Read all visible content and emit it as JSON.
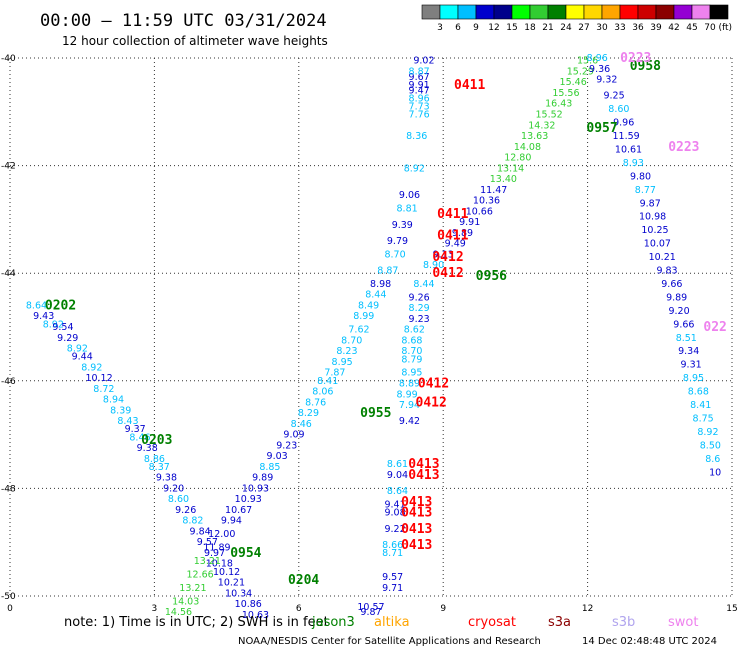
{
  "chart_data": {
    "type": "scatter",
    "title": "00:00 — 11:59 UTC 03/31/2024",
    "subtitle": "12 hour collection of altimeter wave heights",
    "xlim": [
      0,
      15
    ],
    "ylim": [
      -50,
      -40
    ],
    "x_ticks": [
      "0",
      "3",
      "6",
      "9",
      "12",
      "15"
    ],
    "y_ticks": [
      "-40",
      "-42",
      "-44",
      "-46",
      "-48",
      "-50"
    ],
    "grid": true,
    "colorbar": {
      "unit": "(ft)",
      "labels": [
        "3",
        "6",
        "9",
        "12",
        "15",
        "18",
        "21",
        "24",
        "27",
        "30",
        "33",
        "36",
        "39",
        "42",
        "45",
        "70"
      ],
      "colors": [
        "#7f7f7f",
        "#00ffff",
        "#00bfff",
        "#0000cd",
        "#00008b",
        "#00ff00",
        "#32cd32",
        "#008000",
        "#ffff00",
        "#ffd700",
        "#ffa500",
        "#ff0000",
        "#cd0000",
        "#8b0000",
        "#9400d3",
        "#ee82ee",
        "#000000"
      ]
    },
    "passes": [
      {
        "label": "0202",
        "x": 1.05,
        "y": -44.6,
        "color": "#008000"
      },
      {
        "label": "0203",
        "x": 3.05,
        "y": -47.1,
        "color": "#008000"
      },
      {
        "label": "0954",
        "x": 4.9,
        "y": -49.2,
        "color": "#008000"
      },
      {
        "label": "0204",
        "x": 6.1,
        "y": -49.7,
        "color": "#008000"
      },
      {
        "label": "0955",
        "x": 7.6,
        "y": -46.6,
        "color": "#008000"
      },
      {
        "label": "0956",
        "x": 10.0,
        "y": -44.05,
        "color": "#008000"
      },
      {
        "label": "0957",
        "x": 12.3,
        "y": -41.3,
        "color": "#008000"
      },
      {
        "label": "0958",
        "x": 13.2,
        "y": -40.15,
        "color": "#008000"
      },
      {
        "label": "0411",
        "x": 9.55,
        "y": -40.5,
        "color": "#ff0000"
      },
      {
        "label": "0411",
        "x": 9.2,
        "y": -42.9,
        "color": "#ff0000"
      },
      {
        "label": "0411",
        "x": 9.2,
        "y": -43.3,
        "color": "#ff0000"
      },
      {
        "label": "0412",
        "x": 9.1,
        "y": -43.7,
        "color": "#ff0000"
      },
      {
        "label": "0412",
        "x": 9.1,
        "y": -44.0,
        "color": "#ff0000"
      },
      {
        "label": "0412",
        "x": 8.8,
        "y": -46.05,
        "color": "#ff0000"
      },
      {
        "label": "0412",
        "x": 8.75,
        "y": -46.4,
        "color": "#ff0000"
      },
      {
        "label": "0413",
        "x": 8.6,
        "y": -47.55,
        "color": "#ff0000"
      },
      {
        "label": "0413",
        "x": 8.6,
        "y": -47.75,
        "color": "#ff0000"
      },
      {
        "label": "0413",
        "x": 8.45,
        "y": -48.25,
        "color": "#ff0000"
      },
      {
        "label": "0413",
        "x": 8.45,
        "y": -48.45,
        "color": "#ff0000"
      },
      {
        "label": "0413",
        "x": 8.45,
        "y": -48.75,
        "color": "#ff0000"
      },
      {
        "label": "0413",
        "x": 8.45,
        "y": -49.05,
        "color": "#ff0000"
      },
      {
        "label": "0223",
        "x": 13.0,
        "y": -40.0,
        "color": "#ee82ee"
      },
      {
        "label": "0223",
        "x": 14.0,
        "y": -41.65,
        "color": "#ee82ee"
      },
      {
        "label": "022",
        "x": 14.65,
        "y": -45.0,
        "color": "#ee82ee"
      }
    ],
    "points": [
      {
        "x": 0.55,
        "y": -44.6,
        "v": "8.64",
        "c": "#00bfff"
      },
      {
        "x": 0.7,
        "y": -44.8,
        "v": "9.43",
        "c": "#0000cd"
      },
      {
        "x": 0.9,
        "y": -44.95,
        "v": "8.92",
        "c": "#00bfff"
      },
      {
        "x": 1.1,
        "y": -45.0,
        "v": "9.54",
        "c": "#0000cd"
      },
      {
        "x": 1.2,
        "y": -45.2,
        "v": "9.29",
        "c": "#0000cd"
      },
      {
        "x": 1.4,
        "y": -45.4,
        "v": "8.92",
        "c": "#00bfff"
      },
      {
        "x": 1.5,
        "y": -45.55,
        "v": "9.44",
        "c": "#0000cd"
      },
      {
        "x": 1.7,
        "y": -45.75,
        "v": "8.92",
        "c": "#00bfff"
      },
      {
        "x": 1.85,
        "y": -45.95,
        "v": "10.12",
        "c": "#0000cd"
      },
      {
        "x": 1.95,
        "y": -46.15,
        "v": "8.72",
        "c": "#00bfff"
      },
      {
        "x": 2.15,
        "y": -46.35,
        "v": "8.94",
        "c": "#00bfff"
      },
      {
        "x": 2.3,
        "y": -46.55,
        "v": "8.39",
        "c": "#00bfff"
      },
      {
        "x": 2.45,
        "y": -46.75,
        "v": "8.43",
        "c": "#00bfff"
      },
      {
        "x": 2.6,
        "y": -46.9,
        "v": "9.37",
        "c": "#0000cd"
      },
      {
        "x": 2.7,
        "y": -47.05,
        "v": "8.46",
        "c": "#00bfff"
      },
      {
        "x": 2.85,
        "y": -47.25,
        "v": "9.38",
        "c": "#0000cd"
      },
      {
        "x": 3.0,
        "y": -47.45,
        "v": "8.86",
        "c": "#00bfff"
      },
      {
        "x": 3.1,
        "y": -47.6,
        "v": "8.37",
        "c": "#00bfff"
      },
      {
        "x": 3.25,
        "y": -47.8,
        "v": "9.38",
        "c": "#0000cd"
      },
      {
        "x": 3.4,
        "y": -48.0,
        "v": "9.20",
        "c": "#0000cd"
      },
      {
        "x": 3.5,
        "y": -48.2,
        "v": "8.60",
        "c": "#00bfff"
      },
      {
        "x": 3.65,
        "y": -48.4,
        "v": "9.26",
        "c": "#0000cd"
      },
      {
        "x": 3.8,
        "y": -48.6,
        "v": "8.82",
        "c": "#00bfff"
      },
      {
        "x": 3.95,
        "y": -48.8,
        "v": "9.84",
        "c": "#0000cd"
      },
      {
        "x": 4.1,
        "y": -49.0,
        "v": "9.57",
        "c": "#0000cd"
      },
      {
        "x": 4.25,
        "y": -49.2,
        "v": "9.97",
        "c": "#0000cd"
      },
      {
        "x": 4.35,
        "y": -49.4,
        "v": "10.18",
        "c": "#0000cd"
      },
      {
        "x": 4.5,
        "y": -49.55,
        "v": "10.12",
        "c": "#0000cd"
      },
      {
        "x": 4.6,
        "y": -49.75,
        "v": "10.21",
        "c": "#0000cd"
      },
      {
        "x": 4.75,
        "y": -49.95,
        "v": "10.34",
        "c": "#0000cd"
      },
      {
        "x": 4.95,
        "y": -50.15,
        "v": "10.86",
        "c": "#0000cd"
      },
      {
        "x": 5.1,
        "y": -50.35,
        "v": "10.63",
        "c": "#0000cd"
      },
      {
        "x": 3.5,
        "y": -50.3,
        "v": "14.56",
        "c": "#32cd32"
      },
      {
        "x": 3.65,
        "y": -50.1,
        "v": "14.03",
        "c": "#32cd32"
      },
      {
        "x": 3.8,
        "y": -49.85,
        "v": "13.21",
        "c": "#32cd32"
      },
      {
        "x": 3.95,
        "y": -49.6,
        "v": "12.66",
        "c": "#32cd32"
      },
      {
        "x": 4.1,
        "y": -49.35,
        "v": "13.21",
        "c": "#32cd32"
      },
      {
        "x": 4.3,
        "y": -49.1,
        "v": "11.89",
        "c": "#0000cd"
      },
      {
        "x": 4.4,
        "y": -48.85,
        "v": "12.00",
        "c": "#0000cd"
      },
      {
        "x": 4.6,
        "y": -48.6,
        "v": "9.94",
        "c": "#0000cd"
      },
      {
        "x": 4.75,
        "y": -48.4,
        "v": "10.67",
        "c": "#0000cd"
      },
      {
        "x": 4.95,
        "y": -48.2,
        "v": "10.93",
        "c": "#0000cd"
      },
      {
        "x": 5.1,
        "y": -48.0,
        "v": "10.93",
        "c": "#0000cd"
      },
      {
        "x": 5.25,
        "y": -47.8,
        "v": "9.89",
        "c": "#0000cd"
      },
      {
        "x": 5.4,
        "y": -47.6,
        "v": "8.85",
        "c": "#00bfff"
      },
      {
        "x": 5.55,
        "y": -47.4,
        "v": "9.03",
        "c": "#0000cd"
      },
      {
        "x": 5.75,
        "y": -47.2,
        "v": "9.23",
        "c": "#0000cd"
      },
      {
        "x": 5.9,
        "y": -47.0,
        "v": "9.09",
        "c": "#0000cd"
      },
      {
        "x": 6.05,
        "y": -46.8,
        "v": "8.46",
        "c": "#00bfff"
      },
      {
        "x": 6.2,
        "y": -46.6,
        "v": "8.29",
        "c": "#00bfff"
      },
      {
        "x": 6.35,
        "y": -46.4,
        "v": "8.76",
        "c": "#00bfff"
      },
      {
        "x": 6.5,
        "y": -46.2,
        "v": "8.06",
        "c": "#00bfff"
      },
      {
        "x": 6.6,
        "y": -46.0,
        "v": "8.41",
        "c": "#00bfff"
      },
      {
        "x": 6.75,
        "y": -45.85,
        "v": "7.87",
        "c": "#00bfff"
      },
      {
        "x": 6.9,
        "y": -45.65,
        "v": "8.95",
        "c": "#00bfff"
      },
      {
        "x": 7.0,
        "y": -45.45,
        "v": "8.23",
        "c": "#00bfff"
      },
      {
        "x": 7.1,
        "y": -45.25,
        "v": "8.70",
        "c": "#00bfff"
      },
      {
        "x": 7.25,
        "y": -45.05,
        "v": "7.62",
        "c": "#00bfff"
      },
      {
        "x": 7.35,
        "y": -44.8,
        "v": "8.99",
        "c": "#00bfff"
      },
      {
        "x": 7.45,
        "y": -44.6,
        "v": "8.49",
        "c": "#00bfff"
      },
      {
        "x": 7.6,
        "y": -44.4,
        "v": "8.44",
        "c": "#00bfff"
      },
      {
        "x": 7.7,
        "y": -44.2,
        "v": "8.98",
        "c": "#0000cd"
      },
      {
        "x": 7.85,
        "y": -43.95,
        "v": "8.87",
        "c": "#00bfff"
      },
      {
        "x": 8.0,
        "y": -43.65,
        "v": "8.70",
        "c": "#00bfff"
      },
      {
        "x": 8.05,
        "y": -43.4,
        "v": "9.79",
        "c": "#0000cd"
      },
      {
        "x": 8.15,
        "y": -43.1,
        "v": "9.39",
        "c": "#0000cd"
      },
      {
        "x": 8.25,
        "y": -42.8,
        "v": "8.81",
        "c": "#00bfff"
      },
      {
        "x": 8.3,
        "y": -42.55,
        "v": "9.06",
        "c": "#0000cd"
      },
      {
        "x": 8.4,
        "y": -42.05,
        "v": "8.92",
        "c": "#00bfff"
      },
      {
        "x": 8.45,
        "y": -41.45,
        "v": "8.36",
        "c": "#00bfff"
      },
      {
        "x": 8.5,
        "y": -41.05,
        "v": "7.76",
        "c": "#00bfff"
      },
      {
        "x": 8.5,
        "y": -40.9,
        "v": "7.73",
        "c": "#00bfff"
      },
      {
        "x": 8.5,
        "y": -40.75,
        "v": "8.96",
        "c": "#00bfff"
      },
      {
        "x": 8.5,
        "y": -40.6,
        "v": "9.47",
        "c": "#0000cd"
      },
      {
        "x": 8.5,
        "y": -40.5,
        "v": "9.91",
        "c": "#0000cd"
      },
      {
        "x": 8.5,
        "y": -40.35,
        "v": "9.67",
        "c": "#0000cd"
      },
      {
        "x": 8.5,
        "y": -40.25,
        "v": "8.87",
        "c": "#00bfff"
      },
      {
        "x": 8.6,
        "y": -40.05,
        "v": "9.02",
        "c": "#0000cd"
      },
      {
        "x": 8.5,
        "y": -44.45,
        "v": "9.26",
        "c": "#0000cd"
      },
      {
        "x": 8.5,
        "y": -44.65,
        "v": "8.29",
        "c": "#00bfff"
      },
      {
        "x": 8.5,
        "y": -44.85,
        "v": "9.23",
        "c": "#0000cd"
      },
      {
        "x": 8.4,
        "y": -45.05,
        "v": "8.62",
        "c": "#00bfff"
      },
      {
        "x": 8.35,
        "y": -45.25,
        "v": "8.68",
        "c": "#00bfff"
      },
      {
        "x": 8.35,
        "y": -45.45,
        "v": "8.70",
        "c": "#00bfff"
      },
      {
        "x": 8.35,
        "y": -45.6,
        "v": "8.79",
        "c": "#00bfff"
      },
      {
        "x": 8.35,
        "y": -45.85,
        "v": "8.95",
        "c": "#00bfff"
      },
      {
        "x": 8.3,
        "y": -46.05,
        "v": "8.89",
        "c": "#00bfff"
      },
      {
        "x": 8.25,
        "y": -46.25,
        "v": "8.99",
        "c": "#00bfff"
      },
      {
        "x": 8.3,
        "y": -46.45,
        "v": "7.94",
        "c": "#00bfff"
      },
      {
        "x": 8.3,
        "y": -46.75,
        "v": "9.42",
        "c": "#0000cd"
      },
      {
        "x": 8.6,
        "y": -44.2,
        "v": "8.44",
        "c": "#00bfff"
      },
      {
        "x": 8.8,
        "y": -43.85,
        "v": "8.90",
        "c": "#00bfff"
      },
      {
        "x": 9.0,
        "y": -43.65,
        "v": "9.13",
        "c": "#0000cd"
      },
      {
        "x": 9.25,
        "y": -43.45,
        "v": "9.49",
        "c": "#0000cd"
      },
      {
        "x": 9.4,
        "y": -43.25,
        "v": "9.89",
        "c": "#0000cd"
      },
      {
        "x": 9.55,
        "y": -43.05,
        "v": "9.91",
        "c": "#0000cd"
      },
      {
        "x": 9.75,
        "y": -42.85,
        "v": "10.66",
        "c": "#0000cd"
      },
      {
        "x": 9.9,
        "y": -42.65,
        "v": "10.36",
        "c": "#0000cd"
      },
      {
        "x": 10.05,
        "y": -42.45,
        "v": "11.47",
        "c": "#0000cd"
      },
      {
        "x": 10.25,
        "y": -42.25,
        "v": "13.40",
        "c": "#32cd32"
      },
      {
        "x": 10.4,
        "y": -42.05,
        "v": "13.14",
        "c": "#32cd32"
      },
      {
        "x": 10.55,
        "y": -41.85,
        "v": "12.80",
        "c": "#32cd32"
      },
      {
        "x": 10.75,
        "y": -41.65,
        "v": "14.08",
        "c": "#32cd32"
      },
      {
        "x": 10.9,
        "y": -41.45,
        "v": "13.63",
        "c": "#32cd32"
      },
      {
        "x": 11.05,
        "y": -41.25,
        "v": "14.32",
        "c": "#32cd32"
      },
      {
        "x": 11.2,
        "y": -41.05,
        "v": "15.52",
        "c": "#32cd32"
      },
      {
        "x": 11.4,
        "y": -40.85,
        "v": "16.43",
        "c": "#32cd32"
      },
      {
        "x": 11.55,
        "y": -40.65,
        "v": "15.56",
        "c": "#32cd32"
      },
      {
        "x": 11.7,
        "y": -40.45,
        "v": "15.46",
        "c": "#32cd32"
      },
      {
        "x": 11.85,
        "y": -40.25,
        "v": "15.29",
        "c": "#32cd32"
      },
      {
        "x": 12.0,
        "y": -40.05,
        "v": "15.6",
        "c": "#32cd32"
      },
      {
        "x": 12.2,
        "y": -40.0,
        "v": "8.96",
        "c": "#00bfff"
      },
      {
        "x": 12.25,
        "y": -40.2,
        "v": "9.36",
        "c": "#0000cd"
      },
      {
        "x": 12.4,
        "y": -40.4,
        "v": "9.32",
        "c": "#0000cd"
      },
      {
        "x": 12.55,
        "y": -40.7,
        "v": "9.25",
        "c": "#0000cd"
      },
      {
        "x": 12.65,
        "y": -40.95,
        "v": "8.60",
        "c": "#00bfff"
      },
      {
        "x": 12.75,
        "y": -41.2,
        "v": "9.96",
        "c": "#0000cd"
      },
      {
        "x": 12.8,
        "y": -41.45,
        "v": "11.59",
        "c": "#0000cd"
      },
      {
        "x": 12.85,
        "y": -41.7,
        "v": "10.61",
        "c": "#0000cd"
      },
      {
        "x": 12.95,
        "y": -41.95,
        "v": "8.93",
        "c": "#00bfff"
      },
      {
        "x": 13.1,
        "y": -42.2,
        "v": "9.80",
        "c": "#0000cd"
      },
      {
        "x": 13.2,
        "y": -42.45,
        "v": "8.77",
        "c": "#00bfff"
      },
      {
        "x": 13.3,
        "y": -42.7,
        "v": "9.87",
        "c": "#0000cd"
      },
      {
        "x": 13.35,
        "y": -42.95,
        "v": "10.98",
        "c": "#0000cd"
      },
      {
        "x": 13.4,
        "y": -43.2,
        "v": "10.25",
        "c": "#0000cd"
      },
      {
        "x": 13.45,
        "y": -43.45,
        "v": "10.07",
        "c": "#0000cd"
      },
      {
        "x": 13.55,
        "y": -43.7,
        "v": "10.21",
        "c": "#0000cd"
      },
      {
        "x": 13.65,
        "y": -43.95,
        "v": "9.83",
        "c": "#0000cd"
      },
      {
        "x": 13.75,
        "y": -44.2,
        "v": "9.66",
        "c": "#0000cd"
      },
      {
        "x": 13.85,
        "y": -44.45,
        "v": "9.89",
        "c": "#0000cd"
      },
      {
        "x": 13.9,
        "y": -44.7,
        "v": "9.20",
        "c": "#0000cd"
      },
      {
        "x": 14.0,
        "y": -44.95,
        "v": "9.66",
        "c": "#0000cd"
      },
      {
        "x": 14.05,
        "y": -45.2,
        "v": "8.51",
        "c": "#00bfff"
      },
      {
        "x": 14.1,
        "y": -45.45,
        "v": "9.34",
        "c": "#0000cd"
      },
      {
        "x": 14.15,
        "y": -45.7,
        "v": "9.31",
        "c": "#0000cd"
      },
      {
        "x": 14.2,
        "y": -45.95,
        "v": "8.95",
        "c": "#00bfff"
      },
      {
        "x": 14.3,
        "y": -46.2,
        "v": "8.68",
        "c": "#00bfff"
      },
      {
        "x": 14.35,
        "y": -46.45,
        "v": "8.41",
        "c": "#00bfff"
      },
      {
        "x": 14.4,
        "y": -46.7,
        "v": "8.75",
        "c": "#00bfff"
      },
      {
        "x": 14.5,
        "y": -46.95,
        "v": "8.92",
        "c": "#00bfff"
      },
      {
        "x": 14.55,
        "y": -47.2,
        "v": "8.50",
        "c": "#00bfff"
      },
      {
        "x": 14.6,
        "y": -47.45,
        "v": "8.6",
        "c": "#00bfff"
      },
      {
        "x": 14.65,
        "y": -47.7,
        "v": "10",
        "c": "#0000cd"
      },
      {
        "x": 8.05,
        "y": -47.55,
        "v": "8.61",
        "c": "#00bfff"
      },
      {
        "x": 8.05,
        "y": -47.75,
        "v": "9.04",
        "c": "#0000cd"
      },
      {
        "x": 8.05,
        "y": -48.05,
        "v": "8.64",
        "c": "#00bfff"
      },
      {
        "x": 8.0,
        "y": -48.3,
        "v": "9.41",
        "c": "#0000cd"
      },
      {
        "x": 8.0,
        "y": -48.45,
        "v": "9.08",
        "c": "#0000cd"
      },
      {
        "x": 8.0,
        "y": -48.75,
        "v": "9.22",
        "c": "#0000cd"
      },
      {
        "x": 7.95,
        "y": -49.05,
        "v": "8.66",
        "c": "#00bfff"
      },
      {
        "x": 7.95,
        "y": -49.2,
        "v": "8.71",
        "c": "#00bfff"
      },
      {
        "x": 7.95,
        "y": -49.65,
        "v": "9.57",
        "c": "#0000cd"
      },
      {
        "x": 7.95,
        "y": -49.85,
        "v": "9.71",
        "c": "#0000cd"
      },
      {
        "x": 7.5,
        "y": -50.2,
        "v": "10.57",
        "c": "#0000cd"
      },
      {
        "x": 7.5,
        "y": -50.3,
        "v": "9.87",
        "c": "#0000cd"
      }
    ]
  },
  "footer": {
    "note": "note: 1) Time is in UTC; 2) SWH is in feet",
    "satellites": [
      {
        "name": "jason3",
        "color": "#008000"
      },
      {
        "name": "altika",
        "color": "#ffa500"
      },
      {
        "name": "cryosat",
        "color": "#ff0000"
      },
      {
        "name": "s3a",
        "color": "#8b0000"
      },
      {
        "name": "s3b",
        "color": "#b0a4ee"
      },
      {
        "name": "swot",
        "color": "#ee82ee"
      }
    ],
    "credit": "NOAA/NESDIS Center for Satellite Applications and Research",
    "timestamp": "14 Dec 02:48:48 UTC 2024"
  }
}
